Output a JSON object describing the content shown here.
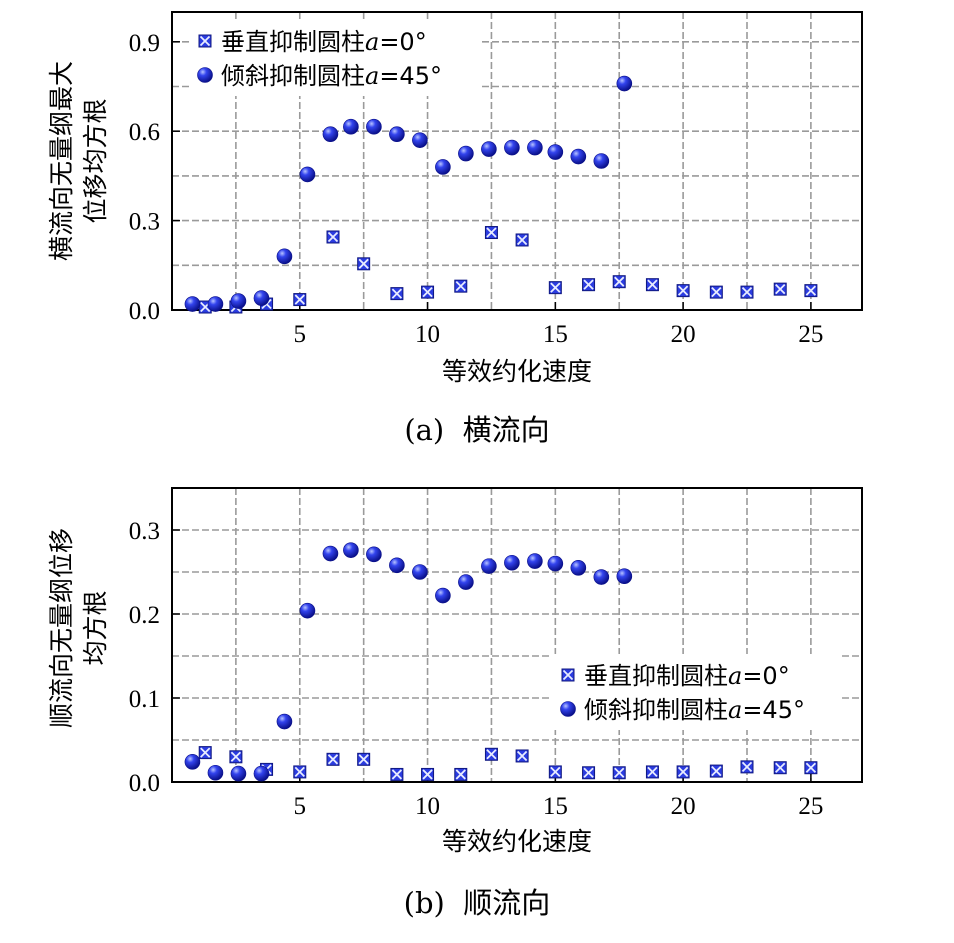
{
  "chart_data": [
    {
      "type": "scatter",
      "caption": "(a)  横流向",
      "xlabel": "等效约化速度",
      "ylabel_lines": [
        "横流向无量纲最大",
        "位移均方根"
      ],
      "xlim": [
        0,
        27
      ],
      "ylim": [
        0,
        1.0
      ],
      "xticks": [
        5,
        10,
        15,
        20,
        25
      ],
      "yticks": [
        0.0,
        0.3,
        0.6,
        0.9
      ],
      "ytick_labels": [
        "0.0",
        "0.3",
        "0.6",
        "0.9"
      ],
      "grid": true,
      "legend_position": "top-left",
      "series": [
        {
          "name_prefix": "垂直抑制圆柱",
          "name_suffix": "=0°",
          "marker": "square-x",
          "color": "#2233cc",
          "x": [
            1.3,
            2.5,
            3.7,
            5.0,
            6.3,
            7.5,
            8.8,
            10.0,
            11.3,
            12.5,
            13.7,
            15.0,
            16.3,
            17.5,
            18.8,
            20.0,
            21.3,
            22.5,
            23.8,
            25.0
          ],
          "y": [
            0.01,
            0.01,
            0.02,
            0.035,
            0.245,
            0.155,
            0.055,
            0.06,
            0.08,
            0.26,
            0.235,
            0.075,
            0.085,
            0.095,
            0.085,
            0.065,
            0.06,
            0.06,
            0.07,
            0.065
          ]
        },
        {
          "name_prefix": "倾斜抑制圆柱",
          "name_suffix": "=45°",
          "marker": "sphere",
          "color": "#1a23d8",
          "x": [
            0.8,
            1.7,
            2.6,
            3.5,
            4.4,
            5.3,
            6.2,
            7.0,
            7.9,
            8.8,
            9.7,
            10.6,
            11.5,
            12.4,
            13.3,
            14.2,
            15.0,
            15.9,
            16.8,
            17.7
          ],
          "y": [
            0.02,
            0.02,
            0.03,
            0.04,
            0.18,
            0.455,
            0.59,
            0.615,
            0.615,
            0.59,
            0.57,
            0.48,
            0.525,
            0.54,
            0.545,
            0.545,
            0.53,
            0.515,
            0.5,
            0.76
          ]
        }
      ]
    },
    {
      "type": "scatter",
      "caption": "(b)  顺流向",
      "xlabel": "等效约化速度",
      "ylabel_lines": [
        "顺流向无量纲位移",
        "均方根"
      ],
      "xlim": [
        0,
        27
      ],
      "ylim": [
        0,
        0.35
      ],
      "xticks": [
        5,
        10,
        15,
        20,
        25
      ],
      "yticks": [
        0.0,
        0.1,
        0.2,
        0.3
      ],
      "ytick_labels": [
        "0.0",
        "0.1",
        "0.2",
        "0.3"
      ],
      "grid": true,
      "legend_position": "bottom-right",
      "series": [
        {
          "name_prefix": "垂直抑制圆柱",
          "name_suffix": "=0°",
          "marker": "square-x",
          "color": "#2233cc",
          "x": [
            1.3,
            2.5,
            3.7,
            5.0,
            6.3,
            7.5,
            8.8,
            10.0,
            11.3,
            12.5,
            13.7,
            15.0,
            16.3,
            17.5,
            18.8,
            20.0,
            21.3,
            22.5,
            23.8,
            25.0
          ],
          "y": [
            0.035,
            0.03,
            0.015,
            0.012,
            0.027,
            0.027,
            0.009,
            0.009,
            0.009,
            0.033,
            0.031,
            0.012,
            0.011,
            0.011,
            0.012,
            0.012,
            0.013,
            0.018,
            0.017,
            0.017
          ]
        },
        {
          "name_prefix": "倾斜抑制圆柱",
          "name_suffix": "=45°",
          "marker": "sphere",
          "color": "#1a23d8",
          "x": [
            0.8,
            1.7,
            2.6,
            3.5,
            4.4,
            5.3,
            6.2,
            7.0,
            7.9,
            8.8,
            9.7,
            10.6,
            11.5,
            12.4,
            13.3,
            14.2,
            15.0,
            15.9,
            16.8,
            17.7
          ],
          "y": [
            0.024,
            0.011,
            0.01,
            0.01,
            0.072,
            0.204,
            0.272,
            0.276,
            0.271,
            0.258,
            0.25,
            0.222,
            0.238,
            0.257,
            0.261,
            0.263,
            0.26,
            0.255,
            0.244,
            0.245
          ]
        }
      ]
    }
  ],
  "legend_italic_symbol": "a"
}
